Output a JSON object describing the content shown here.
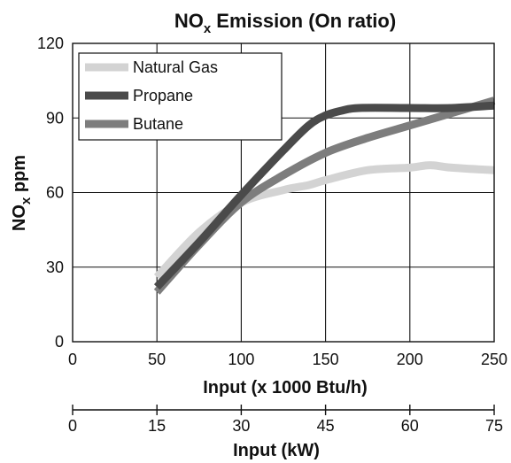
{
  "chart_data": {
    "type": "line",
    "title_main": "NO",
    "title_sub": "x",
    "title_rest": " Emission (On ratio)",
    "ylabel_main": "NO",
    "ylabel_sub": "x",
    "ylabel_rest": " ppm",
    "xlabel": "Input (x 1000 Btu/h)",
    "secondary_xlabel": "Input (kW)",
    "xlim": [
      0,
      250
    ],
    "ylim": [
      0,
      120
    ],
    "x_ticks": [
      "0",
      "50",
      "100",
      "150",
      "200",
      "250"
    ],
    "y_ticks": [
      "0",
      "30",
      "60",
      "90",
      "120"
    ],
    "secondary_x_ticks": [
      "0",
      "15",
      "30",
      "45",
      "60",
      "75"
    ],
    "grid": true,
    "legend_position": "top-left",
    "series": [
      {
        "name": "Natural Gas",
        "color": "#d3d3d3",
        "x": [
          50,
          75,
          100,
          125,
          140,
          150,
          175,
          200,
          212,
          225,
          250
        ],
        "y": [
          26,
          44,
          56,
          61,
          63,
          65,
          69,
          70,
          71,
          70,
          69
        ]
      },
      {
        "name": "Propane",
        "color": "#4a4a4a",
        "x": [
          50,
          75,
          100,
          125,
          140,
          150,
          160,
          170,
          200,
          225,
          250
        ],
        "y": [
          22,
          40,
          59,
          77,
          87,
          91,
          93,
          94,
          94,
          94,
          95
        ]
      },
      {
        "name": "Butane",
        "color": "#7d7d7d",
        "x": [
          50,
          75,
          100,
          125,
          150,
          175,
          200,
          225,
          250
        ],
        "y": [
          20,
          39,
          56,
          67,
          76,
          82,
          87,
          92,
          97
        ]
      }
    ]
  }
}
